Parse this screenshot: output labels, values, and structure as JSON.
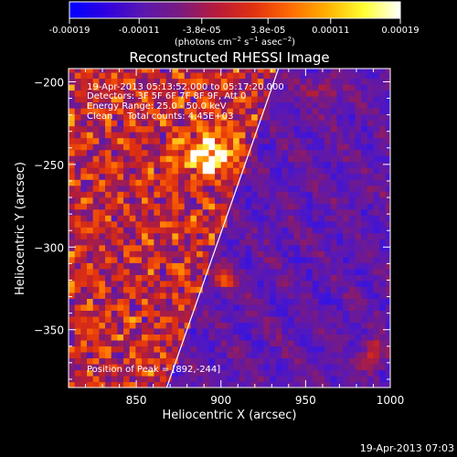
{
  "chart_data": {
    "type": "heatmap",
    "title": "Reconstructed RHESSI Image",
    "xlabel": "Heliocentric X (arcsec)",
    "ylabel": "Heliocentric Y (arcsec)",
    "xlim": [
      810,
      1000
    ],
    "ylim": [
      -385,
      -192
    ],
    "x_ticks": [
      850,
      900,
      950,
      1000
    ],
    "y_ticks": [
      -200,
      -250,
      -300,
      -350
    ],
    "colorbar": {
      "label_html": "(photons cm<tspan dy='-4' font-size='7'>−2</tspan><tspan dy='4'> s</tspan><tspan dy='-4' font-size='7'>−1</tspan><tspan dy='4'> asec</tspan><tspan dy='-4' font-size='7'>−2</tspan><tspan dy='4'>)</tspan>",
      "ticks": [
        "-0.00019",
        "-0.00011",
        "-3.8e-05",
        "3.8e-05",
        "0.00011",
        "0.00019"
      ],
      "range": [
        -0.00019,
        0.00019
      ],
      "colors": [
        "#0000ff",
        "#3000e0",
        "#5a18b0",
        "#7a1a80",
        "#b81a3a",
        "#e03010",
        "#ff6a00",
        "#ffb000",
        "#ffff30",
        "#ffffff"
      ]
    },
    "annotations": [
      "19-Apr-2013 05:13:52.000 to 05:17:20.000",
      "Detectors: 3F 5F 6F 7F 8F 9F, Att 0",
      "Energy Range: 25.0 - 50.0 keV",
      "Clean     Total counts: 4.45E+03"
    ],
    "peak_label": "Position of Peak = [892,-244]",
    "peak": [
      892,
      -244
    ],
    "limb_line": [
      [
        868,
        -385
      ],
      [
        934,
        -192
      ]
    ],
    "timestamp": "19-Apr-2013 07:03"
  }
}
